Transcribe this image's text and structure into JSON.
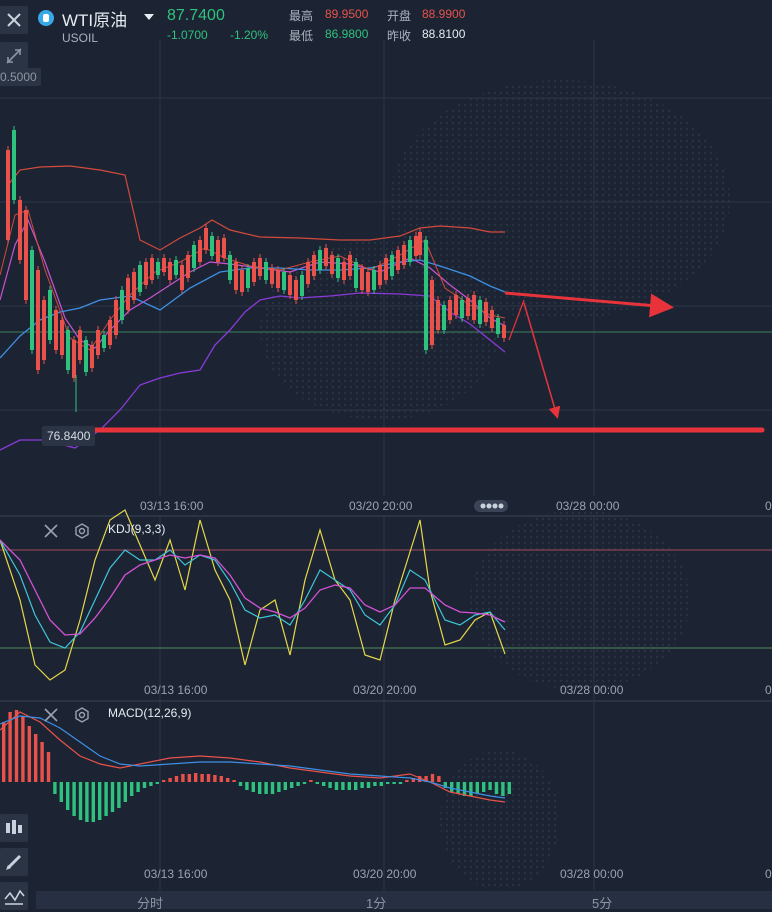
{
  "header": {
    "title": "WTI原油",
    "symbol": "USOIL",
    "price": "87.7400",
    "change": "-1.0700",
    "change_pct": "-1.20%",
    "high_label": "最高",
    "high_value": "89.9500",
    "open_label": "开盘",
    "open_value": "88.9900",
    "low_label": "最低",
    "low_value": "86.9800",
    "prev_close_label": "昨收",
    "prev_close_value": "88.8100"
  },
  "main_chart": {
    "y_top_label": "0.5000",
    "low_marker": "76.8400",
    "date_ticks": [
      "03/13 16:00",
      "03/20 20:00",
      "03/28 00:00"
    ],
    "edge_tick": "0"
  },
  "kdj": {
    "label": "KDJ(9,3,3)",
    "date_ticks": [
      "03/13 16:00",
      "03/20 20:00",
      "03/28 00:00"
    ],
    "edge_tick": "0"
  },
  "macd": {
    "label": "MACD(12,26,9)",
    "date_ticks": [
      "03/13 16:00",
      "03/20 20:00",
      "03/28 00:00"
    ],
    "edge_tick": "0"
  },
  "tabs": [
    "分时",
    "1分",
    "5分"
  ],
  "colors": {
    "up": "#e8524a",
    "down": "#2ec27e",
    "background": "#1c2433",
    "annotation": "#e8333b"
  }
}
